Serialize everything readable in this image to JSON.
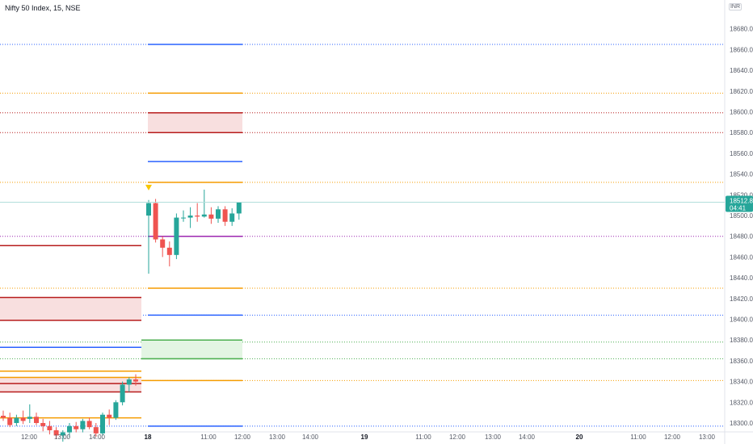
{
  "header": {
    "title": "Nifty 50 Index, 15, NSE",
    "currency": "INR"
  },
  "price_axis": {
    "ticks": [
      "18680.00",
      "18660.00",
      "18640.00",
      "18620.00",
      "18600.00",
      "18580.00",
      "18560.00",
      "18540.00",
      "18520.00",
      "18500.00",
      "18480.00",
      "18460.00",
      "18440.00",
      "18420.00",
      "18400.00",
      "18380.00",
      "18360.00",
      "18340.00",
      "18320.00",
      "18300.00"
    ],
    "current_price": "18512.85",
    "countdown": "04:41",
    "current_color": "#26a69a"
  },
  "time_axis": {
    "labels": [
      "12:00",
      "13:00",
      "14:00",
      "18",
      "11:00",
      "12:00",
      "13:00",
      "14:00",
      "19",
      "11:00",
      "12:00",
      "13:00",
      "14:00",
      "20",
      "11:00",
      "12:00",
      "13:00"
    ],
    "bold_labels": [
      "18",
      "19",
      "20"
    ]
  },
  "colors": {
    "up": "#26a69a",
    "down": "#ef5350",
    "blue": "#2962ff",
    "orange": "#f59c00",
    "red": "#b71c1c",
    "purple": "#9c27b0",
    "green": "#4caf50"
  },
  "chart_data": {
    "type": "candlestick",
    "symbol": "Nifty 50 Index",
    "interval": "15",
    "exchange": "NSE",
    "ylim": [
      18295,
      18690
    ],
    "last_price": 18512.85,
    "candles_prev_session": [
      {
        "open": 18307,
        "high": 18312,
        "low": 18302,
        "close": 18305
      },
      {
        "open": 18305,
        "high": 18310,
        "low": 18296,
        "close": 18298
      },
      {
        "open": 18300,
        "high": 18308,
        "low": 18297,
        "close": 18305
      },
      {
        "open": 18305,
        "high": 18312,
        "low": 18299,
        "close": 18302
      },
      {
        "open": 18304,
        "high": 18318,
        "low": 18300,
        "close": 18306
      },
      {
        "open": 18306,
        "high": 18310,
        "low": 18298,
        "close": 18300
      },
      {
        "open": 18300,
        "high": 18304,
        "low": 18292,
        "close": 18297
      },
      {
        "open": 18297,
        "high": 18302,
        "low": 18289,
        "close": 18293
      },
      {
        "open": 18293,
        "high": 18296,
        "low": 18285,
        "close": 18288
      },
      {
        "open": 18288,
        "high": 18293,
        "low": 18282,
        "close": 18291
      },
      {
        "open": 18291,
        "high": 18300,
        "low": 18286,
        "close": 18297
      },
      {
        "open": 18297,
        "high": 18301,
        "low": 18291,
        "close": 18294
      },
      {
        "open": 18294,
        "high": 18304,
        "low": 18291,
        "close": 18302
      },
      {
        "open": 18302,
        "high": 18305,
        "low": 18294,
        "close": 18296
      },
      {
        "open": 18296,
        "high": 18300,
        "low": 18287,
        "close": 18290
      },
      {
        "open": 18290,
        "high": 18310,
        "low": 18288,
        "close": 18308
      },
      {
        "open": 18308,
        "high": 18313,
        "low": 18298,
        "close": 18305
      },
      {
        "open": 18305,
        "high": 18322,
        "low": 18303,
        "close": 18320
      },
      {
        "open": 18320,
        "high": 18340,
        "low": 18317,
        "close": 18337
      },
      {
        "open": 18337,
        "high": 18344,
        "low": 18330,
        "close": 18342
      },
      {
        "open": 18342,
        "high": 18347,
        "low": 18336,
        "close": 18340
      }
    ],
    "candles_18": [
      {
        "open": 18500,
        "high": 18515,
        "low": 18444,
        "close": 18512
      },
      {
        "open": 18512,
        "high": 18516,
        "low": 18474,
        "close": 18477
      },
      {
        "open": 18477,
        "high": 18480,
        "low": 18460,
        "close": 18469
      },
      {
        "open": 18469,
        "high": 18475,
        "low": 18451,
        "close": 18462
      },
      {
        "open": 18462,
        "high": 18502,
        "low": 18458,
        "close": 18498
      },
      {
        "open": 18498,
        "high": 18505,
        "low": 18494,
        "close": 18498
      },
      {
        "open": 18498,
        "high": 18508,
        "low": 18488,
        "close": 18500
      },
      {
        "open": 18500,
        "high": 18512,
        "low": 18494,
        "close": 18499
      },
      {
        "open": 18499,
        "high": 18525,
        "low": 18498,
        "close": 18501
      },
      {
        "open": 18501,
        "high": 18508,
        "low": 18492,
        "close": 18497
      },
      {
        "open": 18497,
        "high": 18509,
        "low": 18493,
        "close": 18506
      },
      {
        "open": 18506,
        "high": 18509,
        "low": 18490,
        "close": 18494
      },
      {
        "open": 18494,
        "high": 18507,
        "low": 18490,
        "close": 18502
      },
      {
        "open": 18502,
        "high": 18513,
        "low": 18496,
        "close": 18513
      }
    ],
    "horizontal_levels": [
      {
        "price": 18665,
        "color": "blue",
        "style": "dotted"
      },
      {
        "price": 18618,
        "color": "orange",
        "style": "dotted"
      },
      {
        "price": 18599,
        "color": "red",
        "style": "dotted"
      },
      {
        "price": 18580,
        "color": "red",
        "style": "dotted"
      },
      {
        "price": 18532,
        "color": "orange",
        "style": "dotted"
      },
      {
        "price": 18480,
        "color": "purple",
        "style": "dotted"
      },
      {
        "price": 18430,
        "color": "orange",
        "style": "dotted"
      },
      {
        "price": 18404,
        "color": "blue",
        "style": "dotted"
      },
      {
        "price": 18378,
        "color": "green",
        "style": "dotted"
      },
      {
        "price": 18362,
        "color": "green",
        "style": "dotted"
      },
      {
        "price": 18341,
        "color": "orange",
        "style": "dotted"
      },
      {
        "price": 18297,
        "color": "blue",
        "style": "dotted"
      }
    ],
    "marker": {
      "type": "triangle-down",
      "color": "#f7c600",
      "price": 18532
    }
  }
}
